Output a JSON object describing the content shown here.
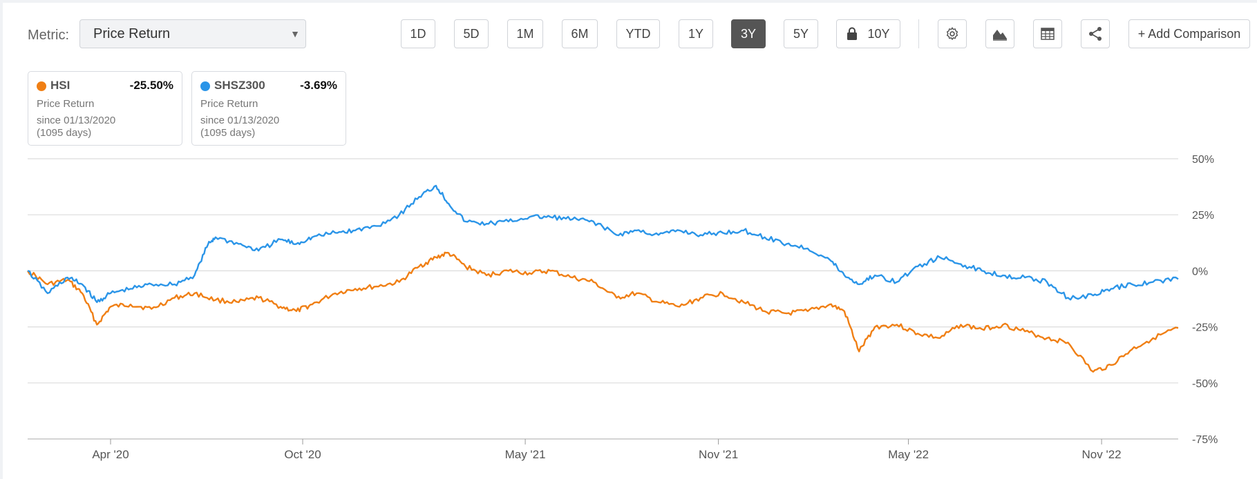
{
  "toolbar": {
    "metric_label": "Metric:",
    "metric_value": "Price Return",
    "ranges": [
      "1D",
      "5D",
      "1M",
      "6M",
      "YTD",
      "1Y",
      "3Y",
      "5Y",
      "10Y"
    ],
    "active_range": "3Y",
    "locked_range": "10Y",
    "icons": [
      "gear-icon",
      "area-chart-icon",
      "table-icon",
      "share-icon"
    ],
    "add_comparison": "+ Add Comparison"
  },
  "legend": [
    {
      "name": "HSI",
      "value": "-25.50%",
      "metric": "Price Return",
      "since": "since 01/13/2020",
      "days": "(1095 days)",
      "color": "#f07f14"
    },
    {
      "name": "SHSZ300",
      "value": "-3.69%",
      "metric": "Price Return",
      "since": "since 01/13/2020",
      "days": "(1095 days)",
      "color": "#2b95e8"
    }
  ],
  "chart_data": {
    "type": "line",
    "x_axis_labels": [
      "Apr '20",
      "Oct '20",
      "May '21",
      "Nov '21",
      "May '22",
      "Nov '22"
    ],
    "y_axis_labels": [
      "50%",
      "25%",
      "0%",
      "-25%",
      "-50%",
      "-75%"
    ],
    "ylim": [
      -75,
      50
    ],
    "grid": true,
    "series": [
      {
        "name": "HSI",
        "color": "#f07f14",
        "x": [
          "2020-01-13",
          "2020-02-01",
          "2020-02-20",
          "2020-03-05",
          "2020-03-19",
          "2020-04-01",
          "2020-04-20",
          "2020-05-10",
          "2020-06-01",
          "2020-06-20",
          "2020-07-10",
          "2020-08-01",
          "2020-08-20",
          "2020-09-10",
          "2020-09-25",
          "2020-10-10",
          "2020-11-01",
          "2020-11-20",
          "2020-12-10",
          "2021-01-01",
          "2021-01-20",
          "2021-02-05",
          "2021-02-17",
          "2021-03-05",
          "2021-03-25",
          "2021-04-15",
          "2021-05-05",
          "2021-05-25",
          "2021-06-15",
          "2021-07-05",
          "2021-07-27",
          "2021-08-15",
          "2021-09-05",
          "2021-09-25",
          "2021-10-15",
          "2021-11-05",
          "2021-11-25",
          "2021-12-15",
          "2022-01-05",
          "2022-01-25",
          "2022-02-15",
          "2022-03-01",
          "2022-03-15",
          "2022-03-30",
          "2022-04-20",
          "2022-05-10",
          "2022-05-31",
          "2022-06-20",
          "2022-07-10",
          "2022-07-30",
          "2022-08-20",
          "2022-09-10",
          "2022-09-30",
          "2022-10-24",
          "2022-11-10",
          "2022-11-30",
          "2022-12-20",
          "2023-01-13"
        ],
        "values": [
          0,
          -6,
          -4,
          -10,
          -24,
          -16,
          -15,
          -17,
          -12,
          -10,
          -13,
          -14,
          -12,
          -16,
          -18,
          -15,
          -10,
          -8,
          -7,
          -5,
          2,
          6,
          8,
          2,
          -2,
          0,
          -1,
          0,
          -3,
          -5,
          -12,
          -10,
          -14,
          -16,
          -12,
          -10,
          -14,
          -18,
          -19,
          -18,
          -15,
          -18,
          -36,
          -25,
          -24,
          -28,
          -30,
          -24,
          -26,
          -24,
          -27,
          -30,
          -32,
          -45,
          -42,
          -35,
          -30,
          -25.5
        ]
      },
      {
        "name": "SHSZ300",
        "color": "#2b95e8",
        "x": [
          "2020-01-13",
          "2020-02-01",
          "2020-02-20",
          "2020-03-05",
          "2020-03-19",
          "2020-04-01",
          "2020-04-20",
          "2020-05-10",
          "2020-06-01",
          "2020-06-20",
          "2020-07-03",
          "2020-07-10",
          "2020-08-01",
          "2020-08-20",
          "2020-09-10",
          "2020-09-25",
          "2020-10-10",
          "2020-11-01",
          "2020-11-20",
          "2020-12-10",
          "2021-01-01",
          "2021-01-20",
          "2021-02-05",
          "2021-02-17",
          "2021-03-05",
          "2021-03-25",
          "2021-04-15",
          "2021-05-05",
          "2021-05-25",
          "2021-06-15",
          "2021-07-05",
          "2021-07-27",
          "2021-08-15",
          "2021-09-05",
          "2021-09-25",
          "2021-10-15",
          "2021-11-05",
          "2021-11-25",
          "2021-12-15",
          "2022-01-05",
          "2022-01-25",
          "2022-02-15",
          "2022-03-01",
          "2022-03-15",
          "2022-03-30",
          "2022-04-20",
          "2022-05-10",
          "2022-05-31",
          "2022-06-20",
          "2022-07-10",
          "2022-07-30",
          "2022-08-20",
          "2022-09-10",
          "2022-09-30",
          "2022-10-24",
          "2022-11-10",
          "2022-11-30",
          "2022-12-20",
          "2023-01-13"
        ],
        "values": [
          0,
          -10,
          -3,
          -6,
          -14,
          -10,
          -8,
          -6,
          -6,
          -2,
          12,
          15,
          12,
          9,
          14,
          12,
          15,
          17,
          18,
          20,
          25,
          33,
          38,
          30,
          22,
          21,
          22,
          24,
          24,
          23,
          22,
          16,
          18,
          16,
          18,
          16,
          17,
          18,
          15,
          12,
          10,
          5,
          -2,
          -6,
          -2,
          -5,
          2,
          6,
          3,
          0,
          -2,
          -3,
          -5,
          -12,
          -11,
          -8,
          -6,
          -5,
          -3.69
        ]
      }
    ]
  }
}
